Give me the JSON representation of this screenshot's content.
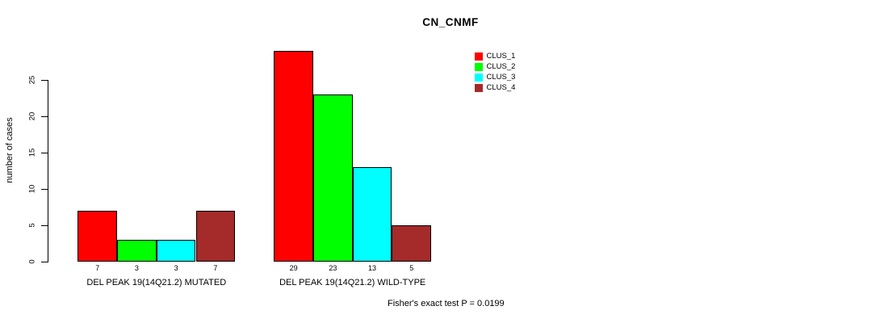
{
  "chart_data": {
    "type": "bar",
    "title": "CN_CNMF",
    "ylabel": "number of cases",
    "xlabel": "",
    "annotation": "Fisher's exact test P = 0.0199",
    "categories": [
      "DEL PEAK 19(14Q21.2) MUTATED",
      "DEL PEAK 19(14Q21.2) WILD-TYPE"
    ],
    "series": [
      {
        "name": "CLUS_1",
        "color": "#FF0000",
        "values": [
          7,
          29
        ]
      },
      {
        "name": "CLUS_2",
        "color": "#00FF00",
        "values": [
          3,
          23
        ]
      },
      {
        "name": "CLUS_3",
        "color": "#00FFFF",
        "values": [
          3,
          13
        ]
      },
      {
        "name": "CLUS_4",
        "color": "#A52A2A",
        "values": [
          7,
          5
        ]
      }
    ],
    "bar_value_labels": [
      [
        7,
        3,
        3,
        7
      ],
      [
        29,
        23,
        13,
        5
      ]
    ],
    "yticks": [
      0,
      5,
      10,
      15,
      20,
      25
    ],
    "ylim": [
      0,
      29
    ],
    "grid": false,
    "legend_position": "top-right",
    "bar_outline_color": "#000000",
    "axis_color": "#000000",
    "background_color": "#FFFFFF",
    "text_color": "#000000"
  }
}
